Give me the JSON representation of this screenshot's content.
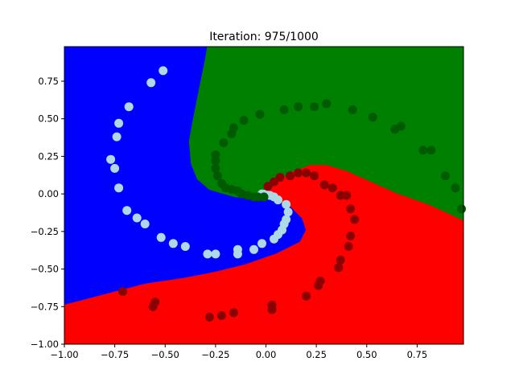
{
  "chart_data": {
    "type": "scatter",
    "title": "Iteration: 975/1000",
    "xlabel": "",
    "ylabel": "",
    "xlim": [
      -1.0,
      0.98
    ],
    "ylim": [
      -1.0,
      0.98
    ],
    "grid": false,
    "xticks": [
      -1.0,
      -0.75,
      -0.5,
      -0.25,
      0.0,
      0.25,
      0.5,
      0.75
    ],
    "yticks": [
      -1.0,
      -0.75,
      -0.5,
      -0.25,
      0.0,
      0.25,
      0.5,
      0.75
    ],
    "xtick_labels": [
      "−1.00",
      "−0.75",
      "−0.50",
      "−0.25",
      "0.00",
      "0.25",
      "0.50",
      "0.75"
    ],
    "ytick_labels": [
      "−1.00",
      "−0.75",
      "−0.50",
      "−0.25",
      "0.00",
      "0.25",
      "0.50",
      "0.75"
    ],
    "regions": [
      {
        "class": "blue",
        "color": "#0000ff",
        "boundary": [
          [
            -1.0,
            0.98
          ],
          [
            -0.29,
            0.98
          ],
          [
            -0.3,
            0.9
          ],
          [
            -0.33,
            0.7
          ],
          [
            -0.36,
            0.5
          ],
          [
            -0.38,
            0.35
          ],
          [
            -0.37,
            0.2
          ],
          [
            -0.34,
            0.1
          ],
          [
            -0.28,
            0.03
          ],
          [
            -0.15,
            -0.02
          ],
          [
            -0.05,
            -0.04
          ],
          [
            0.0,
            -0.03
          ],
          [
            0.07,
            -0.05
          ],
          [
            0.12,
            -0.08
          ],
          [
            0.18,
            -0.16
          ],
          [
            0.2,
            -0.24
          ],
          [
            0.17,
            -0.32
          ],
          [
            0.05,
            -0.4
          ],
          [
            -0.1,
            -0.47
          ],
          [
            -0.25,
            -0.52
          ],
          [
            -0.4,
            -0.56
          ],
          [
            -0.6,
            -0.6
          ],
          [
            -0.8,
            -0.67
          ],
          [
            -1.0,
            -0.74
          ]
        ]
      },
      {
        "class": "green",
        "color": "#008000",
        "boundary": [
          [
            -0.29,
            0.98
          ],
          [
            0.98,
            0.98
          ],
          [
            0.98,
            -0.18
          ],
          [
            0.9,
            -0.13
          ],
          [
            0.8,
            -0.07
          ],
          [
            0.65,
            0.0
          ],
          [
            0.5,
            0.09
          ],
          [
            0.4,
            0.15
          ],
          [
            0.3,
            0.19
          ],
          [
            0.22,
            0.19
          ],
          [
            0.12,
            0.14
          ],
          [
            0.05,
            0.07
          ],
          [
            0.0,
            0.02
          ],
          [
            -0.05,
            -0.03
          ],
          [
            -0.15,
            -0.02
          ],
          [
            -0.28,
            0.03
          ],
          [
            -0.34,
            0.1
          ],
          [
            -0.37,
            0.2
          ],
          [
            -0.38,
            0.35
          ],
          [
            -0.36,
            0.5
          ],
          [
            -0.33,
            0.7
          ],
          [
            -0.3,
            0.9
          ]
        ]
      },
      {
        "class": "red",
        "color": "#ff0000",
        "boundary": [
          [
            -1.0,
            -1.0
          ],
          [
            0.98,
            -1.0
          ],
          [
            0.98,
            -0.18
          ],
          [
            0.9,
            -0.13
          ],
          [
            0.8,
            -0.07
          ],
          [
            0.65,
            0.0
          ],
          [
            0.5,
            0.09
          ],
          [
            0.4,
            0.15
          ],
          [
            0.3,
            0.19
          ],
          [
            0.22,
            0.19
          ],
          [
            0.12,
            0.14
          ],
          [
            0.05,
            0.07
          ],
          [
            0.0,
            0.02
          ],
          [
            -0.05,
            -0.04
          ],
          [
            0.0,
            -0.03
          ],
          [
            0.07,
            -0.05
          ],
          [
            0.12,
            -0.08
          ],
          [
            0.18,
            -0.16
          ],
          [
            0.2,
            -0.24
          ],
          [
            0.17,
            -0.32
          ],
          [
            0.05,
            -0.4
          ],
          [
            -0.1,
            -0.47
          ],
          [
            -0.25,
            -0.52
          ],
          [
            -0.4,
            -0.56
          ],
          [
            -0.6,
            -0.6
          ],
          [
            -0.8,
            -0.67
          ],
          [
            -1.0,
            -0.74
          ]
        ]
      }
    ],
    "series": [
      {
        "color": "#add8e6",
        "points": [
          [
            -0.51,
            0.82
          ],
          [
            -0.57,
            0.74
          ],
          [
            -0.68,
            0.58
          ],
          [
            -0.73,
            0.47
          ],
          [
            -0.74,
            0.38
          ],
          [
            -0.77,
            0.23
          ],
          [
            -0.75,
            0.17
          ],
          [
            -0.73,
            0.04
          ],
          [
            -0.69,
            -0.11
          ],
          [
            -0.64,
            -0.16
          ],
          [
            -0.6,
            -0.2
          ],
          [
            -0.52,
            -0.29
          ],
          [
            -0.46,
            -0.33
          ],
          [
            -0.4,
            -0.35
          ],
          [
            -0.29,
            -0.4
          ],
          [
            -0.25,
            -0.4
          ],
          [
            -0.14,
            -0.37
          ],
          [
            -0.14,
            -0.4
          ],
          [
            -0.06,
            -0.37
          ],
          [
            -0.02,
            -0.33
          ],
          [
            0.04,
            -0.3
          ],
          [
            0.06,
            -0.27
          ],
          [
            0.08,
            -0.24
          ],
          [
            0.09,
            -0.2
          ],
          [
            0.1,
            -0.17
          ],
          [
            0.11,
            -0.12
          ],
          [
            0.1,
            -0.07
          ],
          [
            0.06,
            -0.04
          ],
          [
            0.04,
            -0.02
          ],
          [
            0.02,
            -0.01
          ],
          [
            0.0,
            0.0
          ],
          [
            -0.02,
            0.0
          ]
        ]
      },
      {
        "color": "#005a00",
        "points": [
          [
            -0.25,
            0.26
          ],
          [
            -0.25,
            0.22
          ],
          [
            -0.25,
            0.17
          ],
          [
            -0.24,
            0.12
          ],
          [
            -0.22,
            0.07
          ],
          [
            -0.2,
            0.04
          ],
          [
            -0.17,
            0.03
          ],
          [
            -0.14,
            0.02
          ],
          [
            -0.12,
            0.0
          ],
          [
            -0.09,
            -0.01
          ],
          [
            -0.06,
            -0.02
          ],
          [
            -0.04,
            -0.02
          ],
          [
            -0.01,
            -0.02
          ],
          [
            -0.21,
            0.34
          ],
          [
            -0.17,
            0.4
          ],
          [
            -0.16,
            0.44
          ],
          [
            -0.11,
            0.49
          ],
          [
            -0.03,
            0.53
          ],
          [
            0.09,
            0.56
          ],
          [
            0.16,
            0.58
          ],
          [
            0.24,
            0.58
          ],
          [
            0.3,
            0.6
          ],
          [
            0.43,
            0.56
          ],
          [
            0.53,
            0.51
          ],
          [
            0.64,
            0.43
          ],
          [
            0.67,
            0.45
          ],
          [
            0.78,
            0.29
          ],
          [
            0.82,
            0.29
          ],
          [
            0.89,
            0.12
          ],
          [
            0.94,
            0.04
          ],
          [
            0.97,
            -0.1
          ]
        ]
      },
      {
        "color": "#8b0000",
        "points": [
          [
            0.01,
            0.05
          ],
          [
            0.04,
            0.08
          ],
          [
            0.07,
            0.11
          ],
          [
            0.12,
            0.12
          ],
          [
            0.16,
            0.14
          ],
          [
            0.2,
            0.14
          ],
          [
            0.24,
            0.12
          ],
          [
            0.29,
            0.06
          ],
          [
            0.33,
            0.04
          ],
          [
            0.37,
            -0.01
          ],
          [
            0.4,
            -0.01
          ],
          [
            0.42,
            -0.1
          ],
          [
            0.44,
            -0.17
          ],
          [
            0.42,
            -0.28
          ],
          [
            0.41,
            -0.35
          ],
          [
            0.37,
            -0.44
          ],
          [
            0.36,
            -0.49
          ],
          [
            0.27,
            -0.58
          ],
          [
            0.26,
            -0.61
          ],
          [
            0.2,
            -0.68
          ],
          [
            0.03,
            -0.74
          ],
          [
            0.03,
            -0.77
          ],
          [
            -0.16,
            -0.79
          ],
          [
            -0.22,
            -0.81
          ],
          [
            -0.28,
            -0.82
          ],
          [
            -0.55,
            -0.72
          ],
          [
            -0.56,
            -0.75
          ],
          [
            -0.71,
            -0.65
          ]
        ]
      }
    ]
  }
}
